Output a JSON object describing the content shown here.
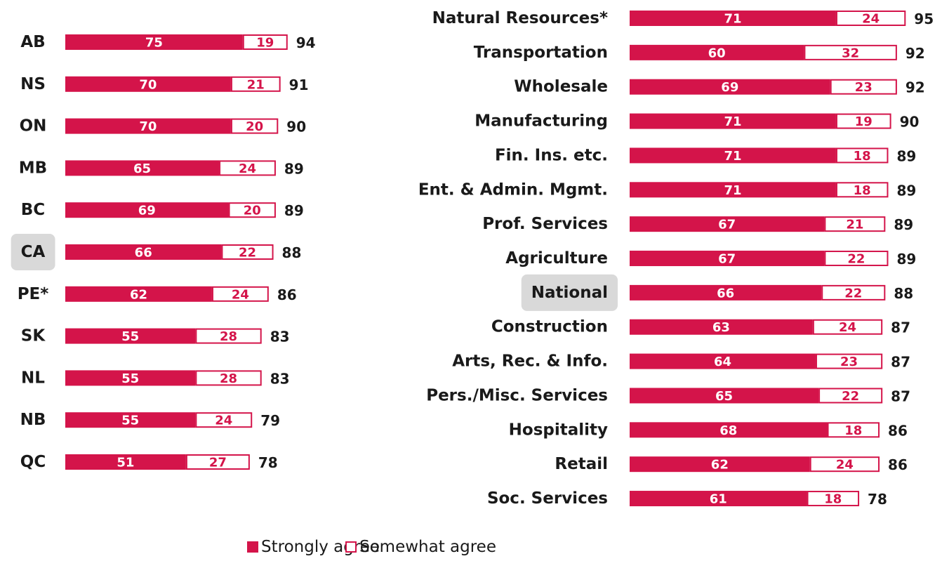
{
  "chart_data": [
    {
      "type": "stacked-bar-horizontal",
      "categories": [
        "AB",
        "NS",
        "ON",
        "MB",
        "BC",
        "CA",
        "PE*",
        "SK",
        "NL",
        "NB",
        "QC"
      ],
      "series": [
        {
          "name": "Strongly agree",
          "color": "#d4144a",
          "values": [
            75,
            70,
            70,
            65,
            69,
            66,
            62,
            55,
            55,
            55,
            51
          ]
        },
        {
          "name": "Somewhat agree",
          "color": "#ffffff",
          "values": [
            19,
            21,
            20,
            24,
            20,
            22,
            24,
            28,
            28,
            24,
            27
          ]
        }
      ],
      "totals": [
        94,
        91,
        90,
        89,
        89,
        88,
        86,
        83,
        83,
        79,
        78
      ],
      "highlight": "CA",
      "xlim": [
        0,
        100
      ]
    },
    {
      "type": "stacked-bar-horizontal",
      "categories": [
        "Natural Resources*",
        "Transportation",
        "Wholesale",
        "Manufacturing",
        "Fin. Ins. etc.",
        "Ent. & Admin. Mgmt.",
        "Prof. Services",
        "Agriculture",
        "National",
        "Construction",
        "Arts, Rec. & Info.",
        "Pers./Misc. Services",
        "Hospitality",
        "Retail",
        "Soc. Services"
      ],
      "series": [
        {
          "color": "#d4144a",
          "values": [
            71,
            60,
            69,
            71,
            71,
            71,
            67,
            67,
            66,
            63,
            64,
            65,
            68,
            62,
            61
          ]
        },
        {
          "color": "#ffffff",
          "values": [
            24,
            32,
            23,
            19,
            18,
            18,
            21,
            22,
            22,
            24,
            23,
            22,
            18,
            24,
            18
          ]
        }
      ],
      "totals": [
        95,
        92,
        92,
        90,
        89,
        89,
        89,
        89,
        88,
        87,
        87,
        87,
        86,
        86,
        78
      ],
      "highlight": "National",
      "xlim": [
        0,
        100
      ]
    }
  ]
}
